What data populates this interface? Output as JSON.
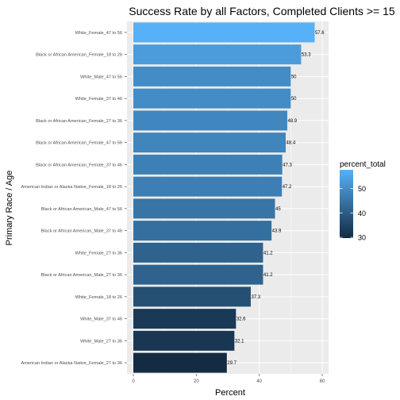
{
  "chart_data": {
    "type": "bar",
    "orientation": "horizontal",
    "title": "Success Rate by all Factors, Completed Clients >= 15",
    "xlabel": "Percent",
    "ylabel": "Primary Race / Age",
    "xlim": [
      0,
      60
    ],
    "xticks": [
      "0",
      "20",
      "40",
      "60"
    ],
    "grid": true,
    "categories": [
      "White_Female_47 to 56",
      "Black or African American_Female_18 to 26",
      "White_Male_47 to 56",
      "White_Female_37 to 46",
      "Black or African American_Female_27 to 36",
      "Black or African American_Female_47 to 56",
      "Black or African American_Female_37 to 46",
      "American Indian or Alaska Native_Female_18 to 26",
      "Black or African American_Male_47 to 56",
      "Black or African American_Male_37 to 46",
      "White_Female_27 to 36",
      "Black or African American_Male_27 to 36",
      "White_Female_18 to 26",
      "White_Male_37 to 46",
      "White_Male_27 to 36",
      "American Indian or Alaska Native_Female_27 to 36"
    ],
    "values": [
      57.6,
      53.3,
      50,
      50,
      48.9,
      48.4,
      47.3,
      47.2,
      45,
      43.9,
      41.2,
      41.2,
      37.3,
      32.6,
      32.1,
      29.7
    ],
    "data_labels": [
      "57.6",
      "53.3",
      "50",
      "50",
      "48.9",
      "48.4",
      "47.3",
      "47.2",
      "45",
      "43.9",
      "41.2",
      "41.2",
      "37.3",
      "32.6",
      "32.1",
      "29.7"
    ],
    "legend": {
      "title": "percent_total",
      "position": "right",
      "ticks": [
        "30",
        "40",
        "50"
      ],
      "tick_values": [
        30,
        40,
        50
      ],
      "range": [
        29.7,
        57.6
      ],
      "color_low": "#132B43",
      "color_high": "#56B1F7"
    },
    "colors": {
      "panel_background": "#EBEBEB",
      "grid": "#FFFFFF"
    }
  }
}
